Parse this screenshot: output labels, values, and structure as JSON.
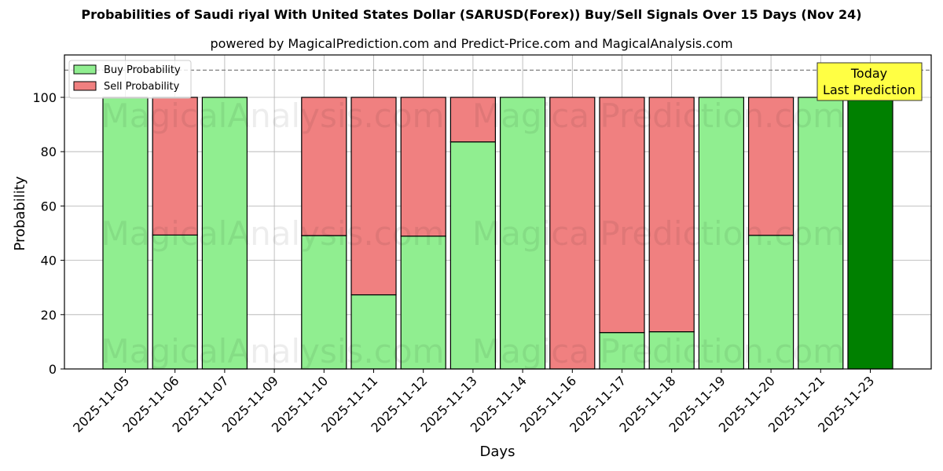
{
  "header": {
    "title": "Probabilities of Saudi riyal With United States Dollar (SARUSD(Forex)) Buy/Sell Signals Over 15 Days (Nov 24)",
    "subtitle": "powered by MagicalPrediction.com and Predict-Price.com and MagicalAnalysis.com"
  },
  "watermarks": [
    "MagicalAnalysis.com",
    "MagicalPrediction.com"
  ],
  "colors": {
    "buy": "#90ee90",
    "sell": "#f08080",
    "today": "#008000",
    "annotation_bg": "#ffff44",
    "grid": "#b0b0b0",
    "reference_line": "#808080"
  },
  "chart_data": {
    "type": "bar",
    "stacked": true,
    "title": "Probabilities of Saudi riyal With United States Dollar (SARUSD(Forex)) Buy/Sell Signals Over 15 Days (Nov 24)",
    "subtitle": "powered by MagicalPrediction.com and Predict-Price.com and MagicalAnalysis.com",
    "xlabel": "Days",
    "ylabel": "Probability",
    "ylim": [
      0,
      115
    ],
    "yticks": [
      0,
      20,
      40,
      60,
      80,
      100
    ],
    "grid": true,
    "legend_position": "upper left",
    "reference_line": {
      "y": 110,
      "style": "dashed"
    },
    "categories": [
      "2025-11-05",
      "2025-11-06",
      "2025-11-07",
      "2025-11-09",
      "2025-11-10",
      "2025-11-11",
      "2025-11-12",
      "2025-11-13",
      "2025-11-14",
      "2025-11-16",
      "2025-11-17",
      "2025-11-18",
      "2025-11-19",
      "2025-11-20",
      "2025-11-21",
      "2025-11-23"
    ],
    "series": [
      {
        "name": "Buy Probability",
        "values": [
          100,
          49.3,
          100,
          0,
          49.1,
          27.3,
          48.9,
          83.6,
          100,
          0,
          13.4,
          13.7,
          100,
          49.2,
          100,
          100
        ]
      },
      {
        "name": "Sell Probability",
        "values": [
          0,
          50.7,
          0,
          0,
          50.9,
          72.7,
          51.1,
          16.4,
          0,
          100,
          86.6,
          86.3,
          0,
          50.8,
          0,
          0
        ]
      }
    ],
    "highlight_index": 15,
    "annotation": {
      "text_line1": "Today",
      "text_line2": "Last Prediction",
      "target": "2025-11-23"
    }
  }
}
